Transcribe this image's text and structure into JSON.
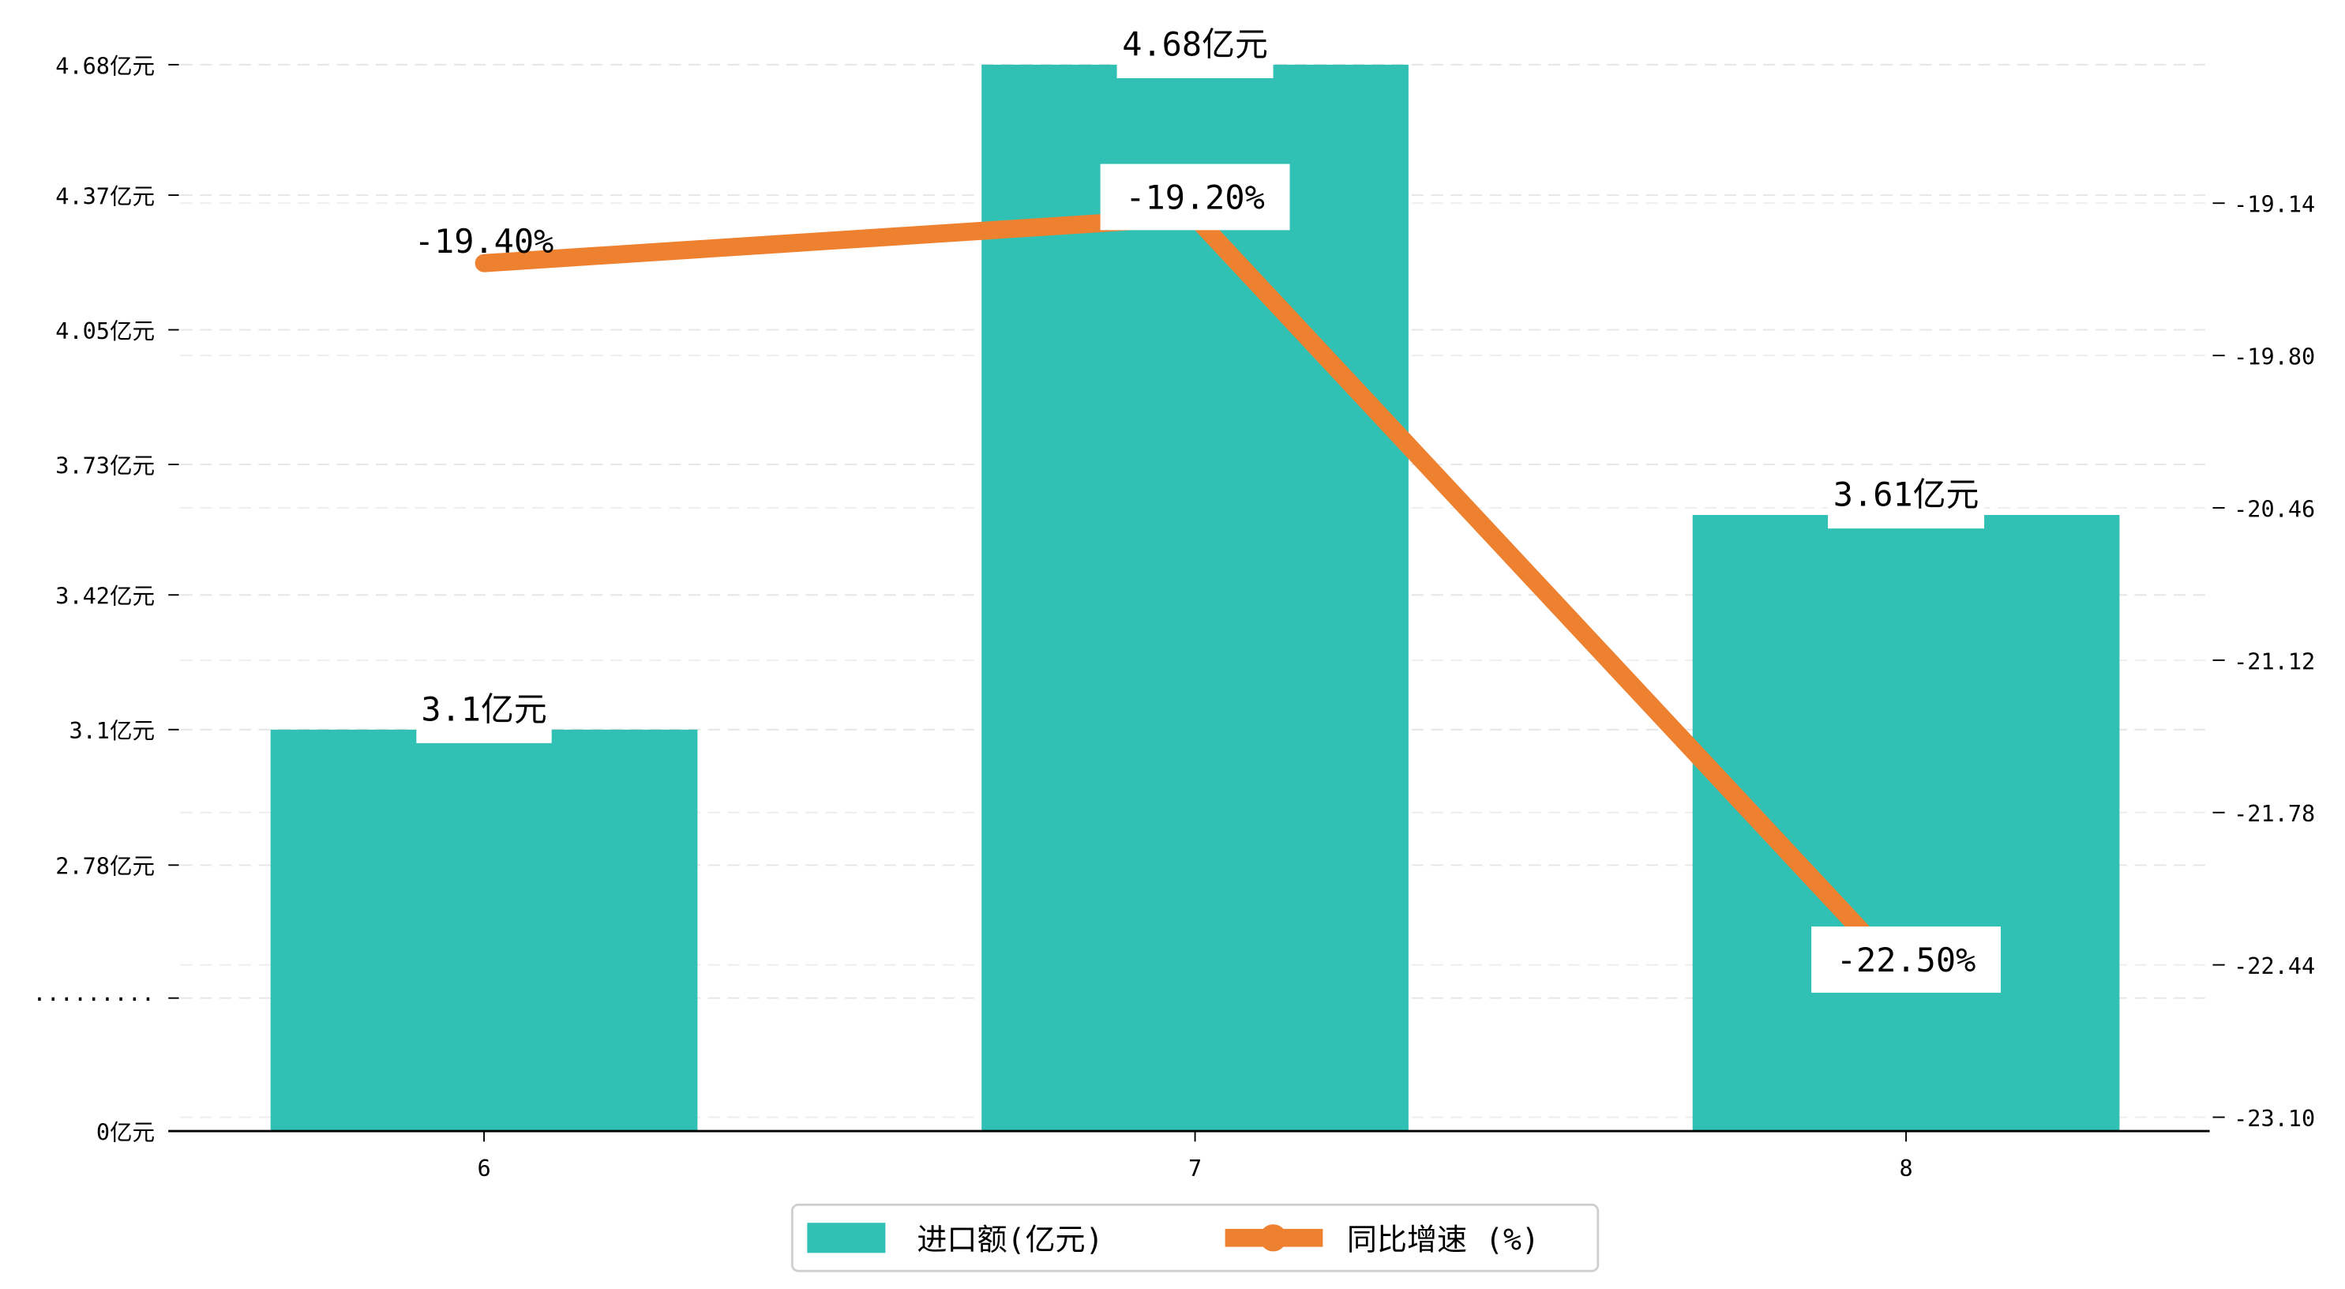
{
  "chart_data": {
    "type": "bar+line",
    "categories": [
      "6",
      "7",
      "8"
    ],
    "series": [
      {
        "name": "进口额(亿元)",
        "type": "bar",
        "axis": "left",
        "values": [
          3.1,
          4.68,
          3.61
        ],
        "labels": [
          "3.1亿元",
          "4.68亿元",
          "3.61亿元"
        ],
        "color": "#1fb9a8"
      },
      {
        "name": "同比增速 (%)",
        "type": "line",
        "axis": "right",
        "values": [
          -19.4,
          -19.2,
          -22.5
        ],
        "labels": [
          "-19.40%",
          "-19.20%",
          "-22.50%"
        ],
        "color": "#ee8130"
      }
    ],
    "left_axis": {
      "ylim": [
        2.146,
        4.68
      ],
      "ticks": [
        2.146,
        2.462,
        2.778,
        3.1,
        3.42,
        3.73,
        4.05,
        4.37,
        4.68
      ],
      "tick_labels": [
        "0亿元",
        "·········",
        "2.78亿元",
        "3.1亿元",
        "3.42亿元",
        "3.73亿元",
        "4.05亿元",
        "4.37亿元",
        "4.68亿元"
      ]
    },
    "right_axis": {
      "ylim": [
        -23.16,
        -18.54
      ],
      "ticks": [
        -23.1,
        -22.44,
        -21.78,
        -21.12,
        -20.46,
        -19.8,
        -19.14
      ],
      "tick_labels": [
        "-23.10",
        "-22.44",
        "-21.78",
        "-21.12",
        "-20.46",
        "-19.80",
        "-19.14"
      ]
    },
    "grid": true,
    "legend": "bottom-center",
    "title": "",
    "xlabel": "",
    "ylabel": ""
  }
}
